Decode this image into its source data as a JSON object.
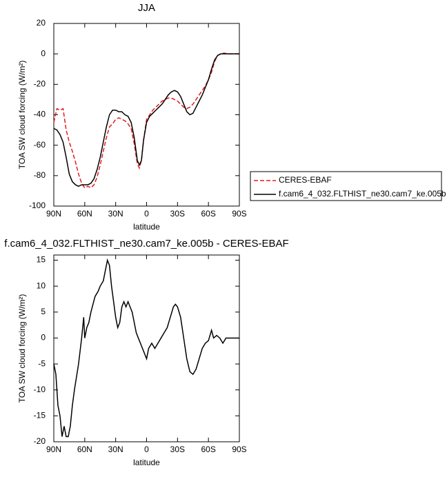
{
  "chart_data": [
    {
      "type": "line",
      "title": "JJA",
      "xlabel": "latitude",
      "ylabel": "TOA SW cloud forcing (W/m²)",
      "xlim": [
        90,
        -90
      ],
      "xticks": [
        {
          "value": 90,
          "label": "90N"
        },
        {
          "value": 60,
          "label": "60N"
        },
        {
          "value": 30,
          "label": "30N"
        },
        0,
        {
          "value": -30,
          "label": "30S"
        },
        {
          "value": -60,
          "label": "60S"
        },
        {
          "value": -90,
          "label": "90S"
        }
      ],
      "ylim": [
        -100,
        20
      ],
      "yticks": [
        20,
        0,
        -20,
        -40,
        -60,
        -80,
        -100
      ],
      "x": [
        90,
        87,
        84,
        81,
        78,
        75,
        72,
        69,
        66,
        63,
        60,
        57,
        54,
        51,
        48,
        45,
        42,
        39,
        36,
        33,
        30,
        27,
        24,
        21,
        18,
        15,
        12,
        9,
        7,
        5,
        3,
        0,
        -3,
        -6,
        -9,
        -12,
        -15,
        -18,
        -21,
        -24,
        -27,
        -30,
        -33,
        -36,
        -39,
        -42,
        -45,
        -48,
        -51,
        -54,
        -57,
        -60,
        -63,
        -66,
        -69,
        -72,
        -75,
        -80,
        -85,
        -90
      ],
      "legend": "right",
      "series": [
        {
          "name": "CERES-EBAF",
          "color": "#e41a1c",
          "dash": true,
          "values": [
            -45,
            -36,
            -37,
            -36,
            -50,
            -58,
            -64,
            -71,
            -79,
            -85,
            -88,
            -87,
            -88,
            -86,
            -81,
            -73,
            -64,
            -55,
            -48,
            -46,
            -43,
            -42,
            -43,
            -44,
            -46,
            -49,
            -59,
            -72,
            -75,
            -70,
            -57,
            -43,
            -40,
            -37,
            -35,
            -33,
            -31,
            -30,
            -29,
            -29,
            -30,
            -31,
            -33,
            -35,
            -36,
            -35,
            -33,
            -30,
            -27,
            -24,
            -21,
            -17,
            -12,
            -5,
            -1,
            0,
            0.5,
            0,
            0,
            0
          ]
        },
        {
          "name": "f.cam6_4_032.FLTHIST_ne30.cam7_ke.005b",
          "color": "#000000",
          "dash": false,
          "values": [
            -49,
            -50,
            -53,
            -58,
            -68,
            -79,
            -84,
            -86,
            -87,
            -86,
            -86,
            -86,
            -85,
            -82,
            -76,
            -68,
            -58,
            -48,
            -40,
            -37,
            -37,
            -38,
            -38,
            -40,
            -41,
            -45,
            -55,
            -70,
            -73,
            -70,
            -57,
            -45,
            -41,
            -39,
            -37,
            -35,
            -33,
            -30,
            -27,
            -25,
            -24,
            -25,
            -28,
            -33,
            -38,
            -40,
            -39,
            -35,
            -31,
            -27,
            -22,
            -17,
            -10,
            -4,
            -1,
            0,
            0,
            0,
            0,
            0
          ]
        }
      ]
    },
    {
      "type": "line",
      "title": "f.cam6_4_032.FLTHIST_ne30.cam7_ke.005b - CERES-EBAF",
      "xlabel": "latitude",
      "ylabel": "TOA SW cloud forcing (W/m²)",
      "xlim": [
        90,
        -90
      ],
      "xticks": [
        {
          "value": 90,
          "label": "90N"
        },
        {
          "value": 60,
          "label": "60N"
        },
        {
          "value": 30,
          "label": "30N"
        },
        0,
        {
          "value": -30,
          "label": "30S"
        },
        {
          "value": -60,
          "label": "60S"
        },
        {
          "value": -90,
          "label": "90S"
        }
      ],
      "ylim": [
        -20,
        16
      ],
      "yticks": [
        15,
        10,
        5,
        0,
        -5,
        -10,
        -15,
        -20
      ],
      "x": [
        90,
        88,
        86,
        84,
        82,
        80,
        78,
        76,
        74,
        72,
        70,
        66,
        63,
        61,
        60,
        58,
        56,
        54,
        50,
        47,
        45,
        42,
        40,
        38,
        36,
        34,
        32,
        30,
        28,
        26,
        24,
        22,
        20,
        18,
        16,
        14,
        12,
        10,
        8,
        6,
        4,
        2,
        0,
        -2,
        -5,
        -8,
        -11,
        -14,
        -17,
        -20,
        -23,
        -26,
        -28,
        -30,
        -33,
        -36,
        -39,
        -42,
        -45,
        -48,
        -51,
        -54,
        -57,
        -60,
        -63,
        -65,
        -68,
        -71,
        -74,
        -77,
        -80,
        -85,
        -90
      ],
      "series": [
        {
          "color": "#000000",
          "dash": false,
          "values": [
            -5,
            -7,
            -13,
            -15,
            -19,
            -17,
            -19,
            -19,
            -17,
            -13,
            -10,
            -5,
            0,
            4,
            0,
            2,
            3,
            5,
            8,
            9,
            10,
            11,
            13,
            15,
            14,
            10,
            7,
            4,
            2,
            3,
            6,
            7,
            6,
            7,
            6,
            5,
            3,
            1,
            0,
            -1,
            -2,
            -3,
            -4,
            -2,
            -1,
            -2,
            -1,
            0,
            1,
            2,
            4,
            6,
            6.5,
            6,
            4,
            0,
            -4,
            -6.5,
            -7,
            -6,
            -4,
            -2,
            -1,
            -0.5,
            1.5,
            0,
            0.5,
            0,
            -1,
            0,
            0,
            0,
            0
          ]
        }
      ]
    }
  ]
}
